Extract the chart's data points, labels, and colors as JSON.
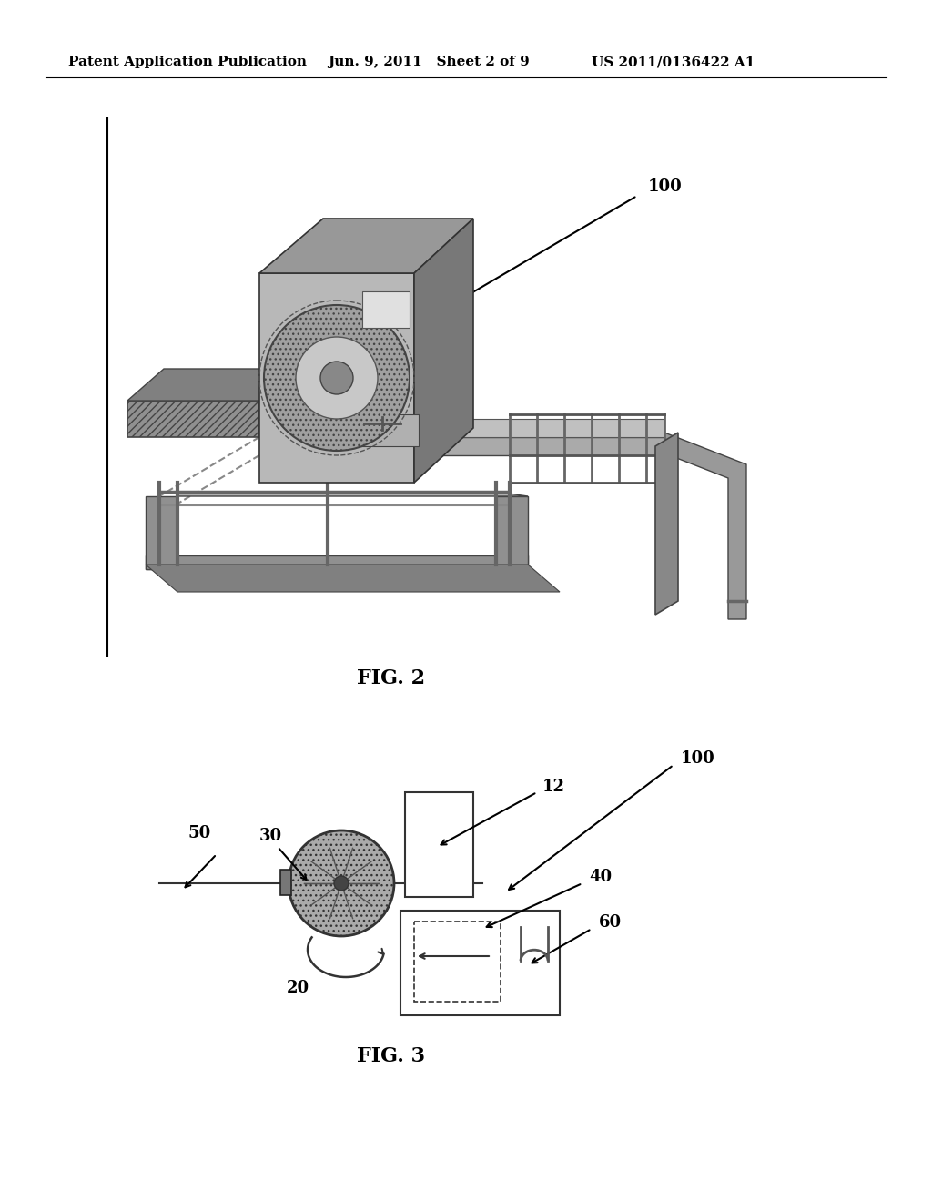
{
  "background_color": "#ffffff",
  "header_text": "Patent Application Publication",
  "header_date": "Jun. 9, 2011",
  "header_sheet": "Sheet 2 of 9",
  "header_patent": "US 2011/0136422 A1",
  "fig2_label": "FIG. 2",
  "fig3_label": "FIG. 3",
  "label_fontsize": 16,
  "ref_fontsize": 13,
  "header_fontsize": 11
}
